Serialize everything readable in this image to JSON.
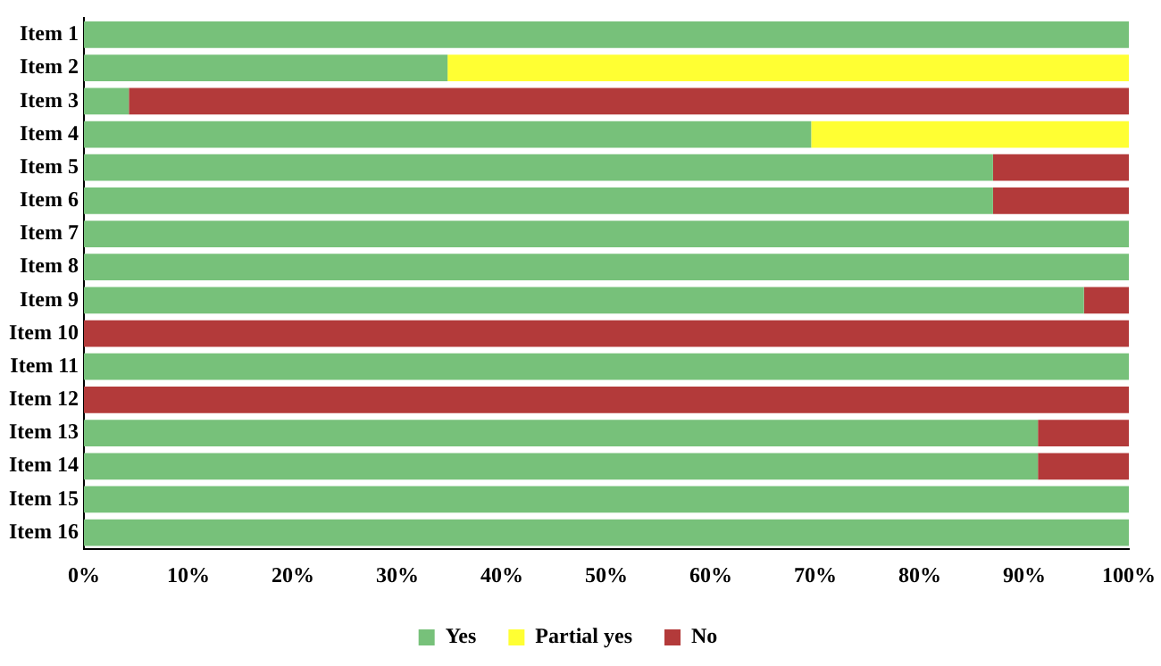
{
  "chart_data": {
    "type": "bar",
    "orientation": "horizontal",
    "stacked": true,
    "categories": [
      "Item 1",
      "Item 2",
      "Item 3",
      "Item 4",
      "Item 5",
      "Item 6",
      "Item 7",
      "Item 8",
      "Item 9",
      "Item 10",
      "Item 11",
      "Item 12",
      "Item 13",
      "Item 14",
      "Item 15",
      "Item 16"
    ],
    "series": [
      {
        "name": "Yes",
        "color": "#77c17a",
        "values": [
          100,
          34.8,
          4.3,
          69.6,
          87,
          87,
          100,
          100,
          95.7,
          0,
          100,
          0,
          91.3,
          91.3,
          100,
          100
        ]
      },
      {
        "name": "Partial yes",
        "color": "#ffff33",
        "values": [
          0,
          65.2,
          0,
          30.4,
          0,
          0,
          0,
          0,
          0,
          0,
          0,
          0,
          0,
          0,
          0,
          0
        ]
      },
      {
        "name": "No",
        "color": "#b33a3a",
        "values": [
          0,
          0,
          95.7,
          0,
          13,
          13,
          0,
          0,
          4.3,
          100,
          0,
          100,
          8.7,
          8.7,
          0,
          0
        ]
      }
    ],
    "xlim": [
      0,
      100
    ],
    "xticks": [
      {
        "value": 0,
        "label": "0%"
      },
      {
        "value": 10,
        "label": "10%"
      },
      {
        "value": 20,
        "label": "20%"
      },
      {
        "value": 30,
        "label": "30%"
      },
      {
        "value": 40,
        "label": "40%"
      },
      {
        "value": 50,
        "label": "50%"
      },
      {
        "value": 60,
        "label": "60%"
      },
      {
        "value": 70,
        "label": "70%"
      },
      {
        "value": 80,
        "label": "80%"
      },
      {
        "value": 90,
        "label": "90%"
      },
      {
        "value": 100,
        "label": "100%"
      }
    ],
    "grid": false,
    "legend": "bottom"
  }
}
